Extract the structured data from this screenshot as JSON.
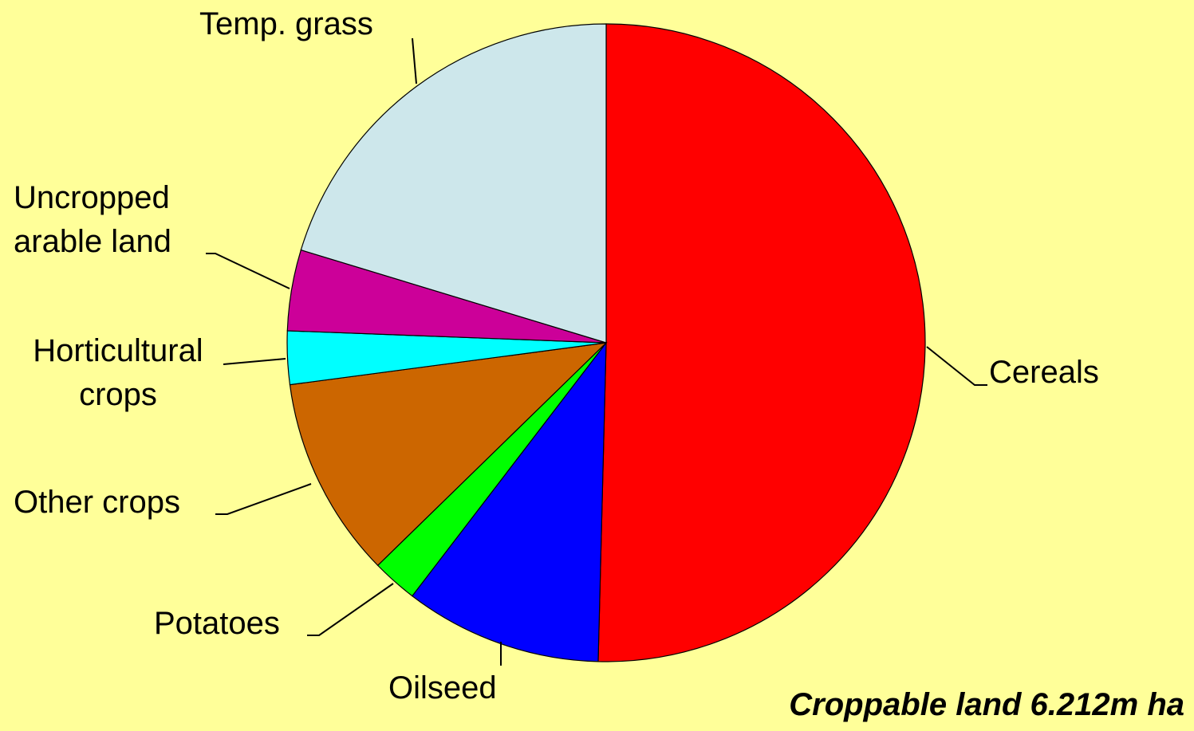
{
  "chart_data": {
    "type": "pie",
    "categories": [
      "Cereals",
      "Oilseed",
      "Potatoes",
      "Other crops",
      "Horticultural crops",
      "Uncropped arable land",
      "Temp. grass"
    ],
    "values": [
      50.4,
      10.0,
      2.3,
      10.2,
      2.7,
      4.1,
      20.3
    ],
    "colors": [
      "#ff0000",
      "#0000ff",
      "#00ff00",
      "#cc6600",
      "#00ffff",
      "#cc0099",
      "#cde7eb"
    ],
    "annotation": "Croppable land 6.212m ha"
  }
}
